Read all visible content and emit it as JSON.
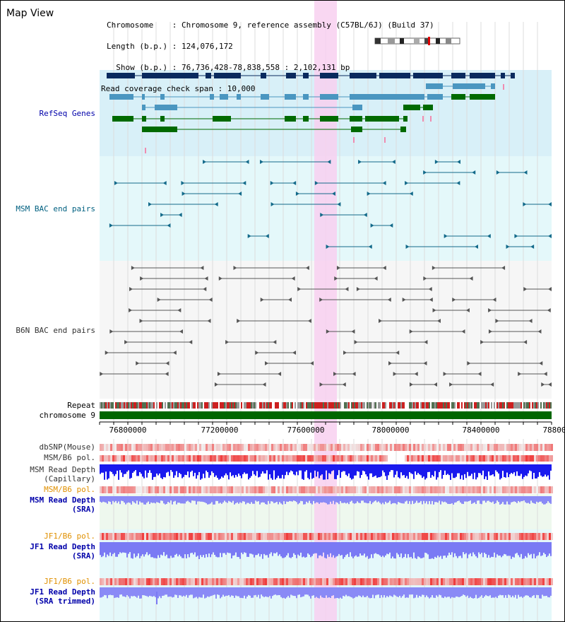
{
  "map_view": {
    "title": "Map View",
    "info": {
      "chromosome": "Chromosome    : Chromosome 9, reference assembly (C57BL/6J) (Build 37)",
      "length": "Length (b.p.) : 124,076,172",
      "show": "  Show (b.p.) : 76,736,428-78,838,558 : 2,102,131 bp",
      "read_coverage": "Read coverage check span : 10,000"
    },
    "axis_ticks": [
      "76800000",
      "77200000",
      "77600000",
      "78000000",
      "78400000",
      "78800"
    ],
    "tracks": {
      "refseq": "RefSeq Genes",
      "msm_bac": "MSM BAC end pairs",
      "b6n_bac": "B6N BAC end pairs",
      "repeat": "Repeat",
      "chromosome": "chromosome 9",
      "dbsnp": "dbSNP(Mouse)",
      "msm_b6_pol_1": "MSM/B6 pol.",
      "msm_read_depth_capillary_1": "MSM Read Depth",
      "msm_read_depth_capillary_2": "(Capillary)",
      "msm_b6_pol_2": "MSM/B6 pol.",
      "msm_read_depth_sra_1": "MSM Read Depth",
      "msm_read_depth_sra_2": "(SRA)",
      "jf1_b6_pol_1": "JF1/B6 pol.",
      "jf1_read_depth_sra_1": "JF1 Read Depth",
      "jf1_read_depth_sra_2": "(SRA)",
      "jf1_b6_pol_2": "JF1/B6 pol.",
      "jf1_read_depth_trimmed_1": "JF1 Read Depth",
      "jf1_read_depth_trimmed_2": "(SRA trimmed)"
    },
    "colors": {
      "refseq_bg": "#d8f0f8",
      "highlight": "#f8d0f0",
      "gene_dark": "#0a2a5e",
      "gene_mid": "#4a96c0",
      "gene_green": "#006a00",
      "msm_bac": "#136a8a",
      "b6n_bac": "#555555",
      "depth_blue": "#1a1aee",
      "depth_light": "#7a7af4",
      "pol_red": "#ee4040",
      "label_blue": "#0000aa",
      "label_teal": "#006080",
      "label_orange": "#e09000"
    }
  }
}
